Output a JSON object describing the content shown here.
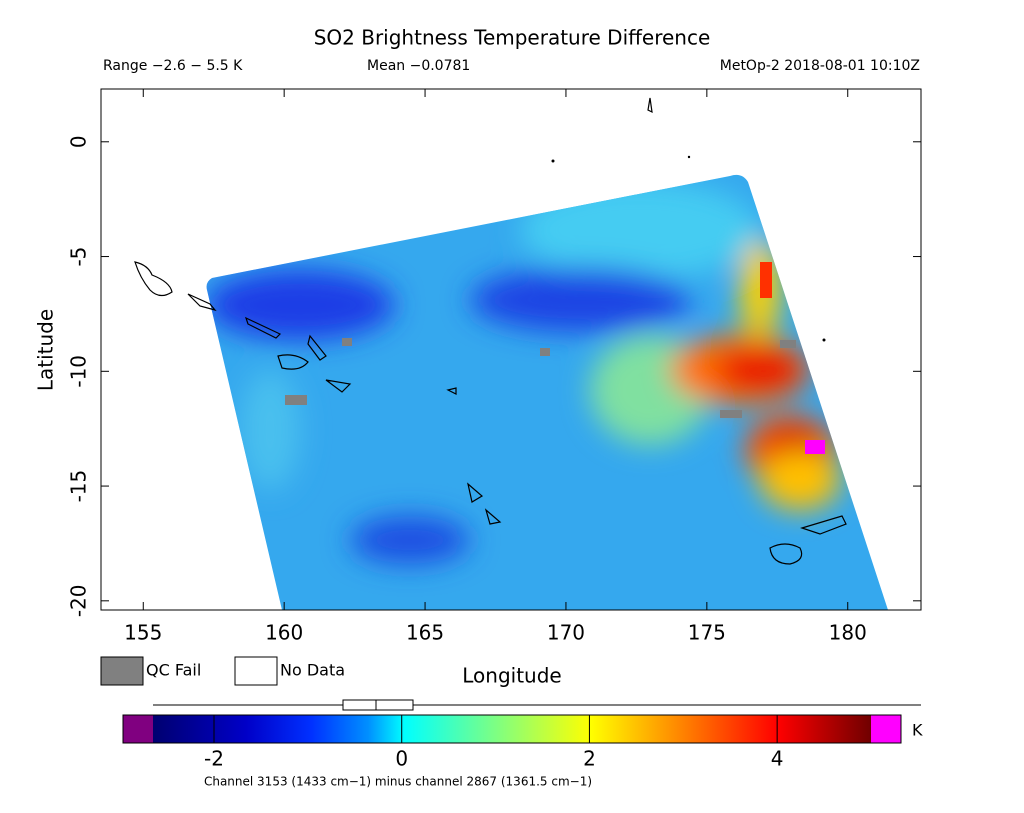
{
  "title": "SO2 Brightness Temperature Difference",
  "header": {
    "range": "Range −2.6 − 5.5 K",
    "mean": "Mean −0.0781",
    "source": "MetOp-2 2018-08-01 10:10Z"
  },
  "map": {
    "x_label": "Longitude",
    "y_label": "Latitude",
    "xlim": [
      153.5,
      182.6
    ],
    "ylim": [
      -20.4,
      2.3
    ],
    "xticks": [
      155,
      160,
      165,
      170,
      175,
      180
    ],
    "yticks": [
      0,
      -5,
      -10,
      -15,
      -20
    ]
  },
  "legend": [
    {
      "label": "QC Fail",
      "color": "#808080"
    },
    {
      "label": "No Data",
      "color": "#ffffff"
    }
  ],
  "colorbar": {
    "clim": [
      -2.65,
      5
    ],
    "ticks": [
      -2,
      0,
      2,
      4
    ],
    "unit": "K",
    "under_color": "#800080",
    "over_color": "#ff00ff",
    "caption": "Channel 3153 (1433 cm−1) minus channel 2867 (1361.5 cm−1)"
  }
}
